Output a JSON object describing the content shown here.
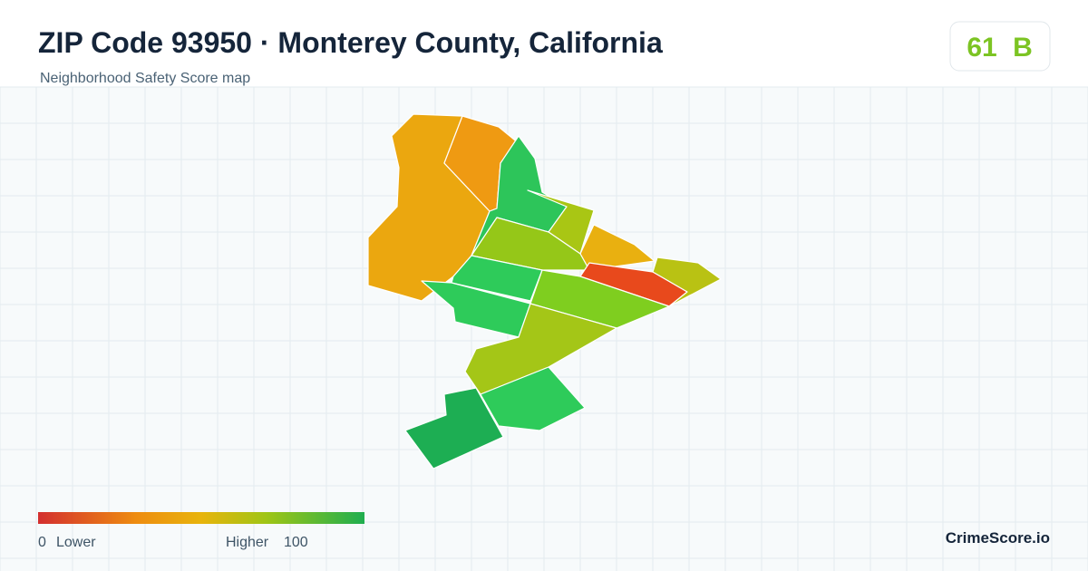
{
  "header": {
    "title": "ZIP Code 93950 · Monterey County, California",
    "subtitle": "Neighborhood Safety Score map"
  },
  "score": {
    "value": 61,
    "grade": "B"
  },
  "legend": {
    "min": 0,
    "min_label": "Lower",
    "max_label": "Higher",
    "max": 100
  },
  "brand": "CrimeScore.io"
}
